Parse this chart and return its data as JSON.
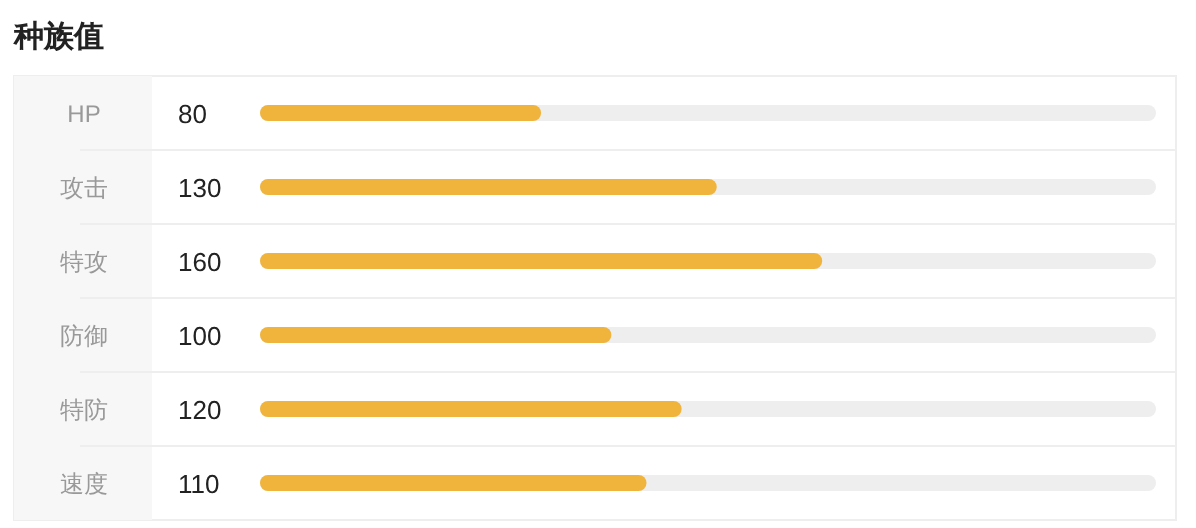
{
  "chart_data": {
    "type": "bar",
    "orientation": "horizontal",
    "title": "种族值",
    "categories": [
      "HP",
      "攻击",
      "特攻",
      "防御",
      "特防",
      "速度"
    ],
    "values": [
      80,
      130,
      160,
      100,
      120,
      110
    ],
    "color": "#f0b43c",
    "xlim": [
      0,
      255
    ],
    "data_labels": true,
    "tick_labels": "y"
  }
}
